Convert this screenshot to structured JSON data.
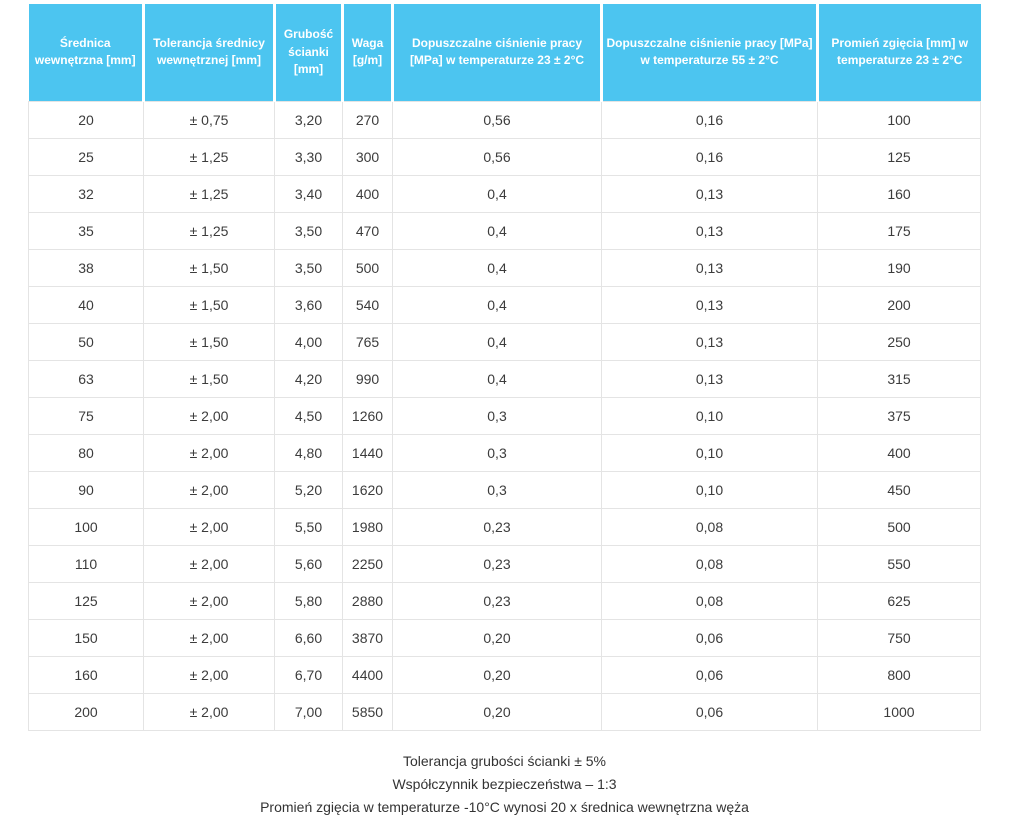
{
  "theme": {
    "header_bg": "#4cc5f0",
    "header_text": "#ffffff",
    "border_color": "#e4e4e4",
    "body_text": "#3c3c3c",
    "footnote_text": "#333333"
  },
  "table": {
    "columns": [
      {
        "id": "srednica-wewnetrzna",
        "label": "Średnica wewnętrzna [mm]"
      },
      {
        "id": "tolerancja-srednicy",
        "label": "Tolerancja średnicy wewnętrznej [mm]"
      },
      {
        "id": "grubosc-scianki",
        "label": "Grubość ścianki [mm]"
      },
      {
        "id": "waga",
        "label": "Waga [g/m]"
      },
      {
        "id": "cisnienie-pracy-23",
        "label": "Dopuszczalne ciśnienie pracy [MPa] w temperaturze 23 ± 2°C"
      },
      {
        "id": "cisnienie-pracy-55",
        "label": "Dopuszczalne ciśnienie pracy [MPa] w temperaturze 55 ± 2°C"
      },
      {
        "id": "promien-zgiecia",
        "label": "Promień zgięcia [mm] w temperaturze 23 ± 2°C"
      }
    ],
    "rows": [
      [
        "20",
        "± 0,75",
        "3,20",
        "270",
        "0,56",
        "0,16",
        "100"
      ],
      [
        "25",
        "± 1,25",
        "3,30",
        "300",
        "0,56",
        "0,16",
        "125"
      ],
      [
        "32",
        "± 1,25",
        "3,40",
        "400",
        "0,4",
        "0,13",
        "160"
      ],
      [
        "35",
        "± 1,25",
        "3,50",
        "470",
        "0,4",
        "0,13",
        "175"
      ],
      [
        "38",
        "± 1,50",
        "3,50",
        "500",
        "0,4",
        "0,13",
        "190"
      ],
      [
        "40",
        "± 1,50",
        "3,60",
        "540",
        "0,4",
        "0,13",
        "200"
      ],
      [
        "50",
        "± 1,50",
        "4,00",
        "765",
        "0,4",
        "0,13",
        "250"
      ],
      [
        "63",
        "± 1,50",
        "4,20",
        "990",
        "0,4",
        "0,13",
        "315"
      ],
      [
        "75",
        "± 2,00",
        "4,50",
        "1260",
        "0,3",
        "0,10",
        "375"
      ],
      [
        "80",
        "± 2,00",
        "4,80",
        "1440",
        "0,3",
        "0,10",
        "400"
      ],
      [
        "90",
        "± 2,00",
        "5,20",
        "1620",
        "0,3",
        "0,10",
        "450"
      ],
      [
        "100",
        "± 2,00",
        "5,50",
        "1980",
        "0,23",
        "0,08",
        "500"
      ],
      [
        "110",
        "± 2,00",
        "5,60",
        "2250",
        "0,23",
        "0,08",
        "550"
      ],
      [
        "125",
        "± 2,00",
        "5,80",
        "2880",
        "0,23",
        "0,08",
        "625"
      ],
      [
        "150",
        "± 2,00",
        "6,60",
        "3870",
        "0,20",
        "0,06",
        "750"
      ],
      [
        "160",
        "± 2,00",
        "6,70",
        "4400",
        "0,20",
        "0,06",
        "800"
      ],
      [
        "200",
        "± 2,00",
        "7,00",
        "5850",
        "0,20",
        "0,06",
        "1000"
      ]
    ]
  },
  "footnotes": [
    "Tolerancja grubości ścianki ± 5%",
    "Współczynnik bezpieczeństwa – 1:3",
    "Promień zgięcia w temperaturze -10°C wynosi 20 x średnica wewnętrzna węża"
  ]
}
